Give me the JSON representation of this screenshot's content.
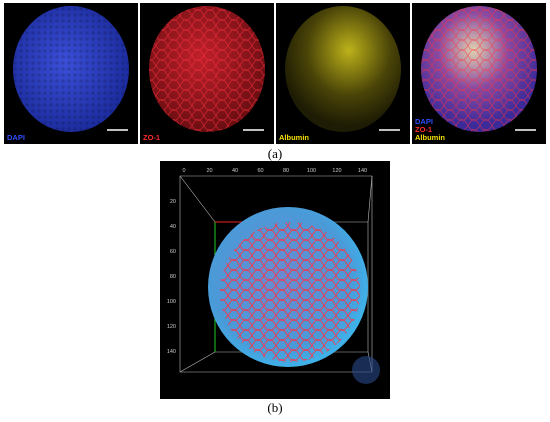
{
  "panel_a": {
    "label": "(a)",
    "images": [
      {
        "labels": [
          {
            "text": "DAPI",
            "color": "#2f4dff"
          }
        ]
      },
      {
        "labels": [
          {
            "text": "ZO-1",
            "color": "#ff2a2a"
          }
        ]
      },
      {
        "labels": [
          {
            "text": "Albumin",
            "color": "#f5e000"
          }
        ]
      },
      {
        "labels": [
          {
            "text": "DAPI",
            "color": "#2f4dff"
          },
          {
            "text": "ZO-1",
            "color": "#ff2a2a"
          },
          {
            "text": "Albumin",
            "color": "#f5e000"
          }
        ]
      }
    ]
  },
  "panel_b": {
    "label": "(b)",
    "top_axis": [
      "0",
      "20",
      "40",
      "60",
      "80",
      "100",
      "120",
      "140"
    ],
    "left_axis": [
      "20",
      "40",
      "60",
      "80",
      "100",
      "120",
      "140"
    ]
  }
}
